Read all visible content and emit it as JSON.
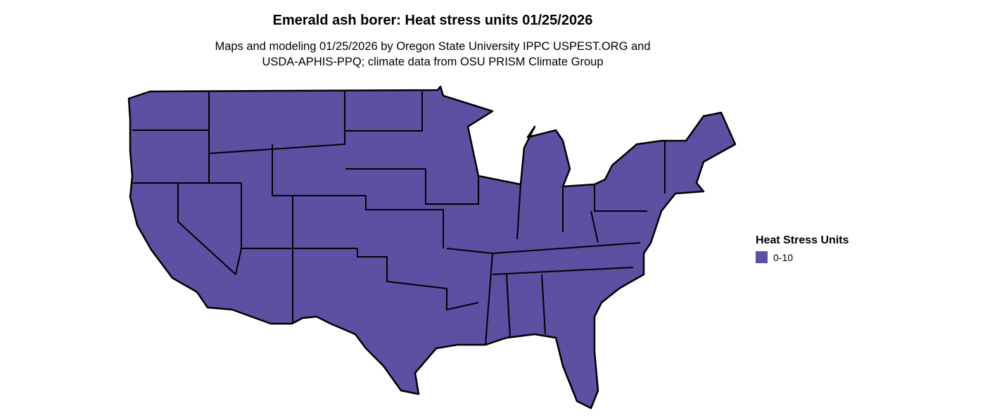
{
  "title": "Emerald ash borer: Heat stress units 01/25/2026",
  "subtitle_line1": "Maps and modeling 01/25/2026 by Oregon State University IPPC USPEST.ORG and",
  "subtitle_line2": "USDA-APHIS-PPQ; climate data from OSU PRISM Climate Group",
  "map": {
    "region": "Contiguous United States",
    "fill_color": "#5e4fa2",
    "border_color": "#000000"
  },
  "legend": {
    "title": "Heat Stress Units",
    "items": [
      {
        "label": "0-10",
        "color": "#5e4fa2"
      }
    ]
  }
}
